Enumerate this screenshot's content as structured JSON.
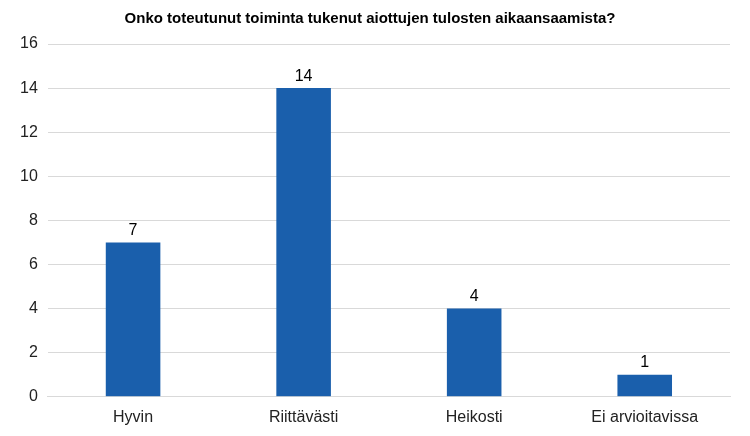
{
  "chart_data": {
    "type": "bar",
    "title": "Onko toteutunut toiminta tukenut aiottujen tulosten aikaansaamista?",
    "categories": [
      "Hyvin",
      "Riittävästi",
      "Heikosti",
      "Ei arvioitavissa"
    ],
    "values": [
      7,
      14,
      4,
      1
    ],
    "color": "#1a5fac",
    "ylim": [
      0,
      16
    ],
    "yticks": [
      0,
      2,
      4,
      6,
      8,
      10,
      12,
      14,
      16
    ],
    "grid": true,
    "data_labels": true
  }
}
